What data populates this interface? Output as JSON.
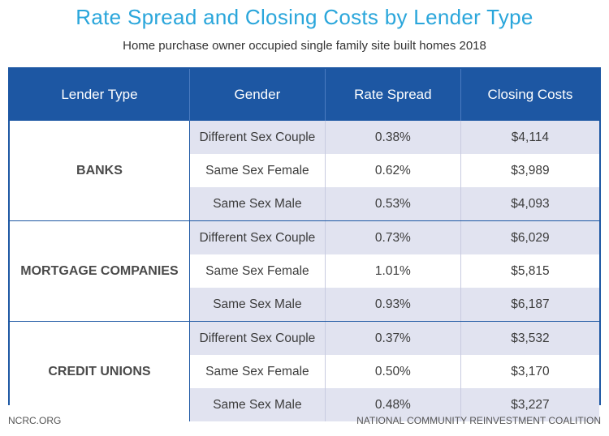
{
  "title": "Rate Spread and Closing Costs by Lender Type",
  "subtitle": "Home purchase owner occupied single family site built homes 2018",
  "headers": [
    "Lender Type",
    "Gender",
    "Rate Spread",
    "Closing Costs"
  ],
  "groups": [
    {
      "lender": "BANKS",
      "rows": [
        {
          "gender": "Different Sex Couple",
          "rate": "0.38%",
          "cost": "$4,114"
        },
        {
          "gender": "Same Sex Female",
          "rate": "0.62%",
          "cost": "$3,989"
        },
        {
          "gender": "Same Sex Male",
          "rate": "0.53%",
          "cost": "$4,093"
        }
      ]
    },
    {
      "lender": "MORTGAGE COMPANIES",
      "rows": [
        {
          "gender": "Different Sex Couple",
          "rate": "0.73%",
          "cost": "$6,029"
        },
        {
          "gender": "Same Sex Female",
          "rate": "1.01%",
          "cost": "$5,815"
        },
        {
          "gender": "Same Sex Male",
          "rate": "0.93%",
          "cost": "$6,187"
        }
      ]
    },
    {
      "lender": "CREDIT UNIONS",
      "rows": [
        {
          "gender": "Different Sex Couple",
          "rate": "0.37%",
          "cost": "$3,532"
        },
        {
          "gender": "Same Sex Female",
          "rate": "0.50%",
          "cost": "$3,170"
        },
        {
          "gender": "Same Sex Male",
          "rate": "0.48%",
          "cost": "$3,227"
        }
      ]
    }
  ],
  "footer": {
    "left": "NCRC.ORG",
    "right": "NATIONAL COMMUNITY REINVESTMENT COALITION"
  },
  "colors": {
    "title": "#2aa6db",
    "header_bg": "#1d57a3",
    "row_shade": "#e1e3f0"
  }
}
